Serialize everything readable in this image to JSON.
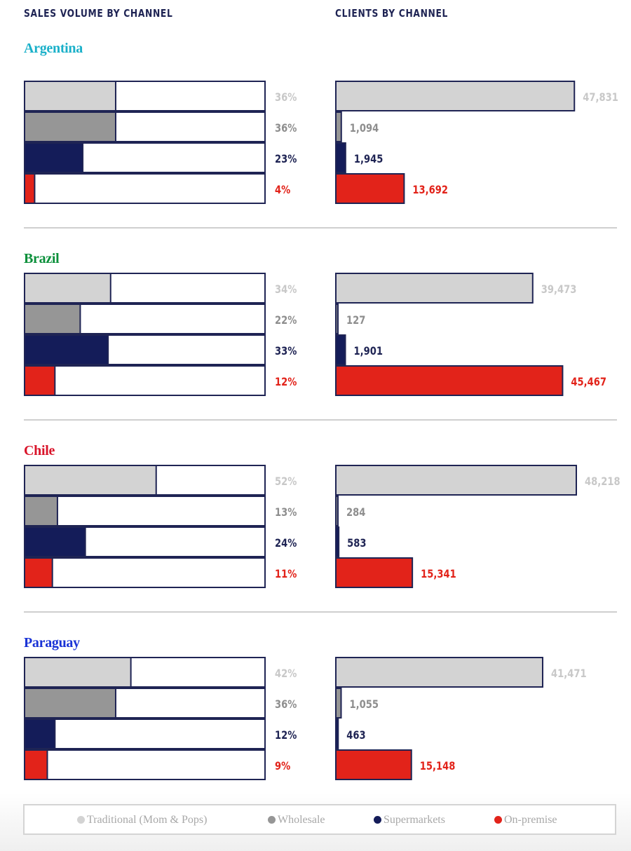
{
  "headers": {
    "left": "SALES VOLUME BY CHANNEL",
    "right": "CLIENTS BY CHANNEL"
  },
  "colors": {
    "traditional": "#d3d3d3",
    "wholesale": "#969696",
    "supermarkets": "#141c59",
    "on_premise": "#e2231a",
    "outline": "#1f2454",
    "divider": "#cfcfcf",
    "label_traditional": "#c8c8c8",
    "label_wholesale": "#8e8e8e",
    "label_supermarkets": "#1f2454",
    "label_on_premise": "#e2231a"
  },
  "legend": [
    {
      "label": "Traditional (Mom & Pops)",
      "color": "#d3d3d3"
    },
    {
      "label": "Wholesale",
      "color": "#969696"
    },
    {
      "label": "Supermarkets",
      "color": "#141c59"
    },
    {
      "label": "On-premise",
      "color": "#e2231a"
    }
  ],
  "chart_data": {
    "type": "bar",
    "categories": [
      "Traditional (Mom & Pops)",
      "Wholesale",
      "Supermarkets",
      "On-premise"
    ],
    "panels": [
      {
        "country": "Argentina",
        "country_color": "#1ab0c9",
        "sales_volume_pct": [
          36,
          36,
          23,
          4
        ],
        "sales_labels": [
          "36%",
          "36%",
          "23%",
          "4%"
        ],
        "clients": [
          47831,
          1094,
          1945,
          13692
        ],
        "client_labels": [
          "47,831",
          "1,094",
          "1,945",
          "13,692"
        ]
      },
      {
        "country": "Brazil",
        "country_color": "#0a8f3a",
        "sales_volume_pct": [
          34,
          22,
          33,
          12
        ],
        "sales_labels": [
          "34%",
          "22%",
          "33%",
          "12%"
        ],
        "clients": [
          39473,
          127,
          1901,
          45467
        ],
        "client_labels": [
          "39,473",
          "127",
          "1,901",
          "45,467"
        ]
      },
      {
        "country": "Chile",
        "country_color": "#d9142a",
        "sales_volume_pct": [
          52,
          13,
          24,
          11
        ],
        "sales_labels": [
          "52%",
          "13%",
          "24%",
          "11%"
        ],
        "clients": [
          48218,
          284,
          583,
          15341
        ],
        "client_labels": [
          "48,218",
          "284",
          "583",
          "15,341"
        ]
      },
      {
        "country": "Paraguay",
        "country_color": "#1a33d6",
        "sales_volume_pct": [
          42,
          36,
          12,
          9
        ],
        "sales_labels": [
          "42%",
          "36%",
          "12%",
          "9%"
        ],
        "clients": [
          41471,
          1055,
          463,
          15148
        ],
        "client_labels": [
          "41,471",
          "1,055",
          "463",
          "15,148"
        ]
      }
    ],
    "sales_axis_max_pct": 100,
    "clients_axis_max": 48218
  }
}
